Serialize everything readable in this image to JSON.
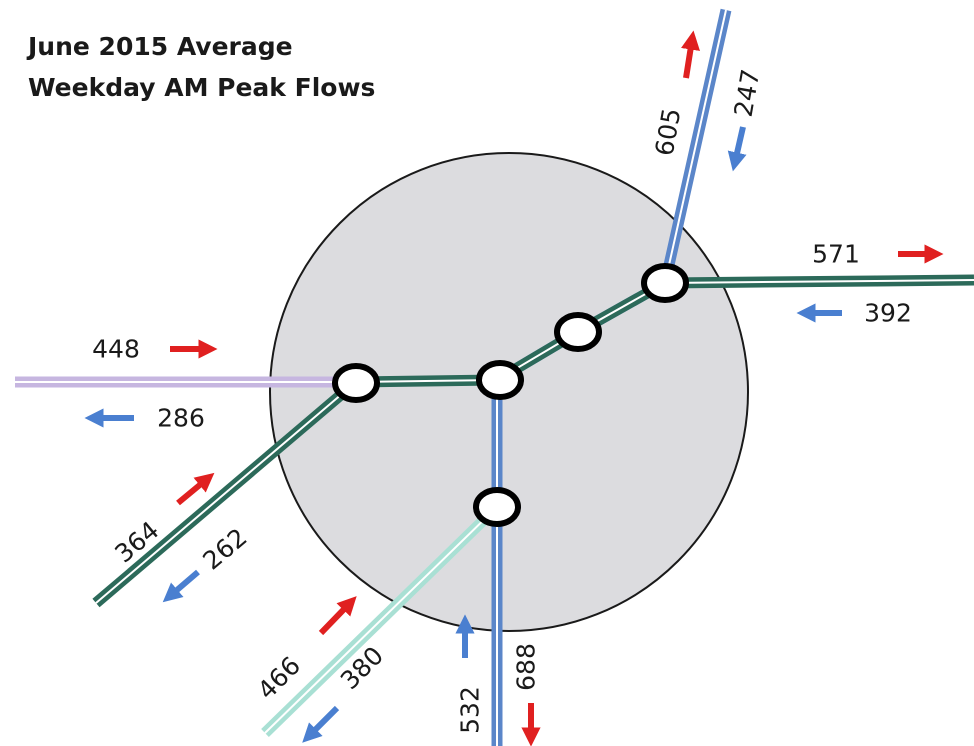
{
  "title": {
    "line1": "June 2015 Average",
    "line2": "Weekday AM Peak Flows"
  },
  "colors": {
    "zone_fill": "#dcdcdf",
    "zone_stroke": "#1a1a1a",
    "blue_line": "#5b86c9",
    "green_line": "#2c6a5a",
    "purple_line": "#c6b6e0",
    "teal_line": "#a9e0d4",
    "outbound_arrow": "#e02020",
    "inbound_arrow": "#4a7fd0",
    "station_fill": "#ffffff",
    "station_stroke": "#000000"
  },
  "flows": {
    "north_out": "605",
    "north_in": "247",
    "east_out": "571",
    "east_in": "392",
    "west_in": "448",
    "west_out": "286",
    "southwest_in": "364",
    "southwest_out": "262",
    "south_branch_in": "466",
    "south_branch_out": "380",
    "south_in": "532",
    "south_out": "688"
  }
}
